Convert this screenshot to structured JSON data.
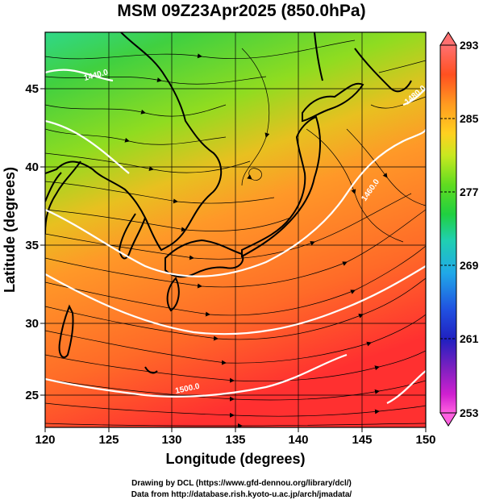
{
  "title": "MSM 09Z23Apr2025 (850.0hPa)",
  "x_axis": {
    "label": "Longitude (degrees)",
    "ticks": [
      "120",
      "125",
      "130",
      "135",
      "140",
      "145",
      "150"
    ]
  },
  "y_axis": {
    "label": "Latitude  (degrees)",
    "ticks": [
      "25",
      "30",
      "35",
      "40",
      "45"
    ]
  },
  "colorbar": {
    "ticks": [
      "293",
      "285",
      "277",
      "269",
      "261",
      "253"
    ],
    "colors": [
      "#ff7070",
      "#ff5020",
      "#ff9a20",
      "#ffd020",
      "#c8e820",
      "#60dc20",
      "#20d040",
      "#20d0b0",
      "#20a8e8",
      "#2050e0",
      "#2020c0",
      "#8020c0",
      "#d020d0",
      "#ff60e0"
    ]
  },
  "contour_labels": [
    "1440.0",
    "1460.0",
    "1480.0",
    "1500.0"
  ],
  "credits": {
    "line1": "Drawing by DCL (https://www.gfd-dennou.org/library/dcl/)",
    "line2": "Data from http://database.rish.kyoto-u.ac.jp/arch/jmadata/"
  }
}
